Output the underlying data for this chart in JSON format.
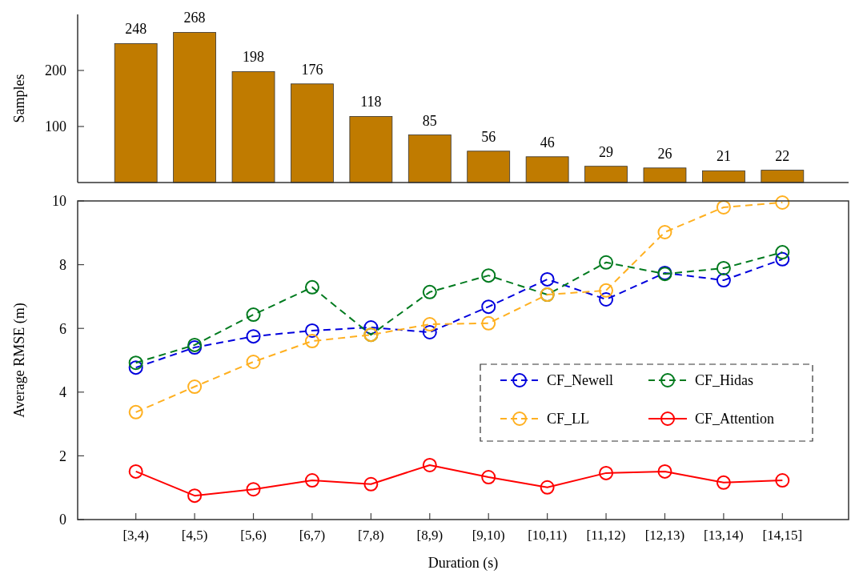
{
  "chart_data": [
    {
      "type": "bar",
      "ylabel": "Samples",
      "categories": [
        null,
        null,
        null,
        null,
        null,
        null,
        null,
        null,
        null,
        null,
        null,
        null
      ],
      "values": [
        248,
        268,
        198,
        176,
        118,
        85,
        56,
        46,
        29,
        26,
        21,
        22
      ],
      "color": "#c07b00",
      "ylim": [
        0,
        300
      ],
      "yticks": [
        100,
        200
      ],
      "data_labels": true,
      "tick_labels": "y"
    },
    {
      "type": "line",
      "xlabel": "Duration (s)",
      "ylabel": "Average RMSE (m)",
      "categories": [
        "[3,4)",
        "[4,5)",
        "[5,6)",
        "[6,7)",
        "[7,8)",
        "[8,9)",
        "[9,10)",
        "[10,11)",
        "[11,12)",
        "[12,13)",
        "[13,14)",
        "[14,15]"
      ],
      "series": [
        {
          "name": "CF_Newell",
          "color": "#0000dd",
          "line_style": "dashed",
          "values": [
            4.77,
            5.4,
            5.75,
            5.93,
            6.03,
            5.88,
            6.68,
            7.54,
            6.91,
            7.74,
            7.51,
            8.17
          ]
        },
        {
          "name": "CF_Hidas",
          "color": "#007a1e",
          "line_style": "dashed",
          "values": [
            4.92,
            5.48,
            6.43,
            7.29,
            5.8,
            7.14,
            7.66,
            7.06,
            8.07,
            7.71,
            7.89,
            8.39
          ]
        },
        {
          "name": "CF_LL",
          "color": "#ffb020",
          "line_style": "dashed",
          "values": [
            3.37,
            4.17,
            4.95,
            5.6,
            5.8,
            6.13,
            6.16,
            7.06,
            7.19,
            9.02,
            9.8,
            9.95
          ]
        },
        {
          "name": "CF_Attention",
          "color": "#ff0000",
          "line_style": "solid",
          "values": [
            1.51,
            0.75,
            0.95,
            1.23,
            1.11,
            1.71,
            1.33,
            1.01,
            1.46,
            1.51,
            1.16,
            1.23
          ]
        }
      ],
      "marker": "circle",
      "ylim": [
        0,
        10
      ],
      "yticks": [
        0,
        2,
        4,
        6,
        8,
        10
      ],
      "legend": "center right"
    }
  ]
}
